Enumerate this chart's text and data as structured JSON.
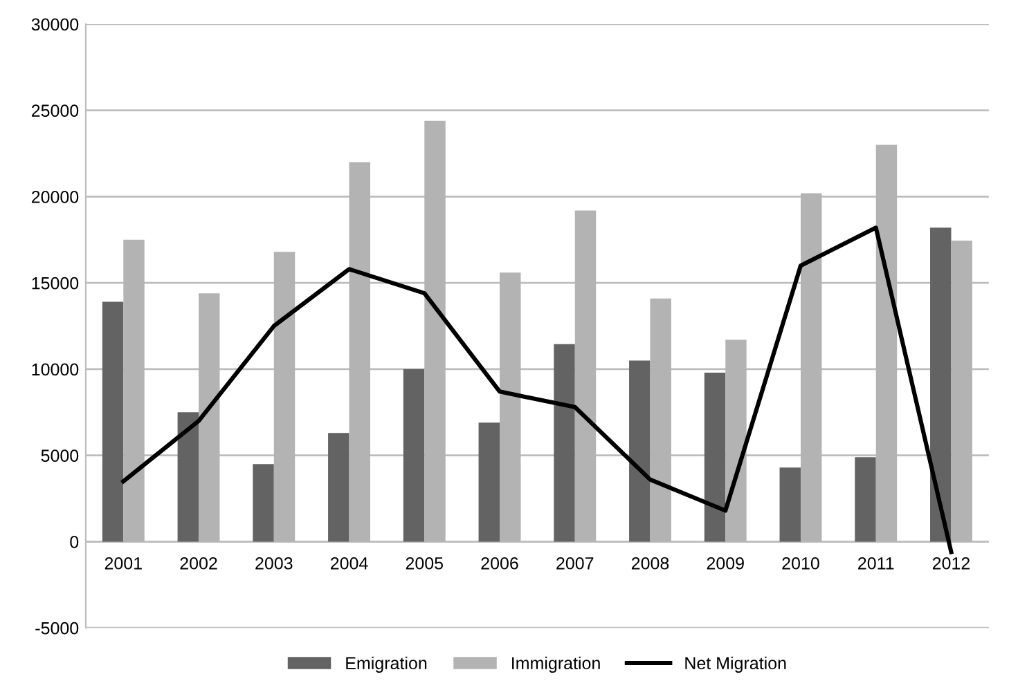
{
  "chart_data": {
    "type": "bar",
    "categories": [
      "2001",
      "2002",
      "2003",
      "2004",
      "2005",
      "2006",
      "2007",
      "2008",
      "2009",
      "2010",
      "2011",
      "2012"
    ],
    "series": [
      {
        "name": "Emigration",
        "color": "#636363",
        "values": [
          13900,
          7500,
          4500,
          6300,
          10000,
          6900,
          11450,
          10500,
          9800,
          4300,
          4900,
          18200
        ]
      },
      {
        "name": "Immigration",
        "color": "#b3b3b3",
        "values": [
          17500,
          14400,
          16800,
          22000,
          24400,
          15600,
          19200,
          14100,
          11700,
          20200,
          23000,
          17450
        ]
      },
      {
        "name": "Net Migration",
        "type": "line",
        "color": "#000000",
        "values": [
          3500,
          7000,
          12500,
          15800,
          14400,
          8700,
          7800,
          3600,
          1800,
          16000,
          18200,
          -600
        ]
      }
    ],
    "ylim": [
      -5000,
      30000
    ],
    "yticks": [
      -5000,
      0,
      5000,
      10000,
      15000,
      20000,
      25000,
      30000
    ],
    "grid": "y",
    "legend": "bottom",
    "marker": "none",
    "line_style": "solid"
  }
}
